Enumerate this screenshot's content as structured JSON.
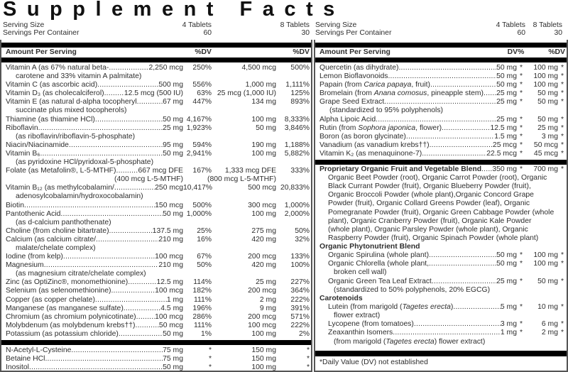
{
  "title": "Supplement Facts",
  "serving": {
    "size_label": "Serving Size",
    "size_1": "4 Tablets",
    "size_2": "8 Tablets",
    "per_label": "Servings Per Container",
    "per_1": "60",
    "per_2": "30"
  },
  "header": {
    "amount": "Amount Per Serving",
    "dv": "%DV",
    "dv2": "%DV"
  },
  "left": {
    "vitamins": [
      {
        "name": "Vitamin A (as 67% natural beta-",
        "amt": "2,250 mcg",
        "dv": "250%",
        "amt2": "4,500 mcg",
        "dv2": "500%",
        "sub": [
          "carotene and 33% vitamin A palmitate)"
        ]
      },
      {
        "name": "Vitamin C (as ascorbic acid)",
        "amt": "500 mg",
        "dv": "556%",
        "amt2": "1,000 mg",
        "dv2": "1,111%"
      },
      {
        "name": "Vitamin D₃ (as cholecalciferol)",
        "amt": "12.5 mcg (500 IU)",
        "dv": "63%",
        "amt2": "25 mcg (1,000 IU)",
        "dv2": "125%"
      },
      {
        "name": "Vitamin E (as natural d-alpha tocopheryl",
        "amt": "67 mg",
        "dv": "447%",
        "amt2": "134 mg",
        "dv2": "893%",
        "sub": [
          "succinate plus mixed tocopherols)"
        ]
      },
      {
        "name": "Thiamine (as thiamine HCl)",
        "amt": "50 mg",
        "dv": "4,167%",
        "amt2": "100 mg",
        "dv2": "8,333%"
      },
      {
        "name": "Riboflavin",
        "amt": "25 mg",
        "dv": "1,923%",
        "amt2": "50 mg",
        "dv2": "3,846%",
        "sub": [
          "(as riboflavin/riboflavin-5-phosphate)"
        ]
      },
      {
        "name": "Niacin/Niacinamide",
        "amt": "95 mg",
        "dv": "594%",
        "amt2": "190 mg",
        "dv2": "1,188%"
      },
      {
        "name": "Vitamin B₆",
        "amt": "50 mg",
        "dv": "2,941%",
        "amt2": "100 mg",
        "dv2": "5,882%",
        "sub": [
          "(as pyridoxine HCl/pyridoxal-5-phosphate)"
        ]
      },
      {
        "name": "Folate (as Metafolin®, L-5-MTHF)",
        "amt": "667 mcg DFE",
        "dv": "167%",
        "amt2": "1,333 mcg DFE",
        "dv2": "333%",
        "note": {
          "amt": "(400 mcg L-5-MTHF)",
          "amt2": "(800 mcg L-5-MTHF)"
        }
      },
      {
        "name": "Vitamin B₁₂ (as methylcobalamin/",
        "amt": "250 mcg",
        "dv": "10,417%",
        "amt2": "500 mcg",
        "dv2": "20,833%",
        "sub": [
          "adenosylcobalamin/hydroxocobalamin)"
        ]
      },
      {
        "name": "Biotin",
        "amt": "150 mcg",
        "dv": "500%",
        "amt2": "300 mcg",
        "dv2": "1,000%"
      },
      {
        "name": "Pantothenic Acid",
        "amt": "50 mg",
        "dv": "1,000%",
        "amt2": "100 mg",
        "dv2": "2,000%",
        "sub": [
          "(as d-calcium panthothenate)"
        ]
      },
      {
        "name": "Choline (from choline bitartrate)",
        "amt": "137.5 mg",
        "dv": "25%",
        "amt2": "275 mg",
        "dv2": "50%"
      },
      {
        "name": "Calcium (as calcium citrate/",
        "amt": "210 mg",
        "dv": "16%",
        "amt2": "420 mg",
        "dv2": "32%",
        "sub": [
          "malate/chelate complex)"
        ]
      },
      {
        "name": "Iodine (from kelp)",
        "amt": "100 mcg",
        "dv": "67%",
        "amt2": "200 mcg",
        "dv2": "133%"
      },
      {
        "name": "Magnesium",
        "amt": "210 mg",
        "dv": "50%",
        "amt2": "420 mg",
        "dv2": "100%",
        "sub": [
          "(as magnesium citrate/chelate complex)"
        ]
      },
      {
        "name": "Zinc (as OptiZinc®, monomethionine)",
        "amt": "12.5 mg",
        "dv": "114%",
        "amt2": "25 mg",
        "dv2": "227%"
      },
      {
        "name": "Selenium (as selenomethionine)",
        "amt": "100 mcg",
        "dv": "182%",
        "amt2": "200 mcg",
        "dv2": "364%"
      },
      {
        "name": "Copper (as copper chelate)",
        "amt": "1 mg",
        "dv": "111%",
        "amt2": "2 mg",
        "dv2": "222%"
      },
      {
        "name": "Manganese (as manganese sulfate)",
        "amt": "4.5 mg",
        "dv": "196%",
        "amt2": "9 mg",
        "dv2": "391%"
      },
      {
        "name": "Chromium (as chromium polynicotinate)",
        "amt": "100 mcg",
        "dv": "286%",
        "amt2": "200 mcg",
        "dv2": "571%"
      },
      {
        "name": "Molybdenum (as molybdenum krebs††)",
        "amt": "50 mcg",
        "dv": "111%",
        "amt2": "100 mcg",
        "dv2": "222%"
      },
      {
        "name": "Potassium (as potassium chloride)",
        "amt": "50 mg",
        "dv": "1%",
        "amt2": "100 mg",
        "dv2": "2%"
      }
    ],
    "others": [
      {
        "name": "N-Acetyl-L-Cysteine",
        "amt": "75 mg",
        "dv": "*",
        "amt2": "150 mg",
        "dv2": "*"
      },
      {
        "name": "Betaine HCl",
        "amt": "75 mg",
        "dv": "*",
        "amt2": "150 mg",
        "dv2": "*"
      },
      {
        "name": "Inositol",
        "amt": "50 mg",
        "dv": "*",
        "amt2": "100 mg",
        "dv2": "*"
      }
    ]
  },
  "right": {
    "items": [
      {
        "name": [
          {
            "t": "Quercetin (as dihydrate)"
          }
        ],
        "amt": "50 mg",
        "dv": "*",
        "amt2": "100 mg",
        "dv2": "*"
      },
      {
        "name": [
          {
            "t": "Lemon Bioflavonoids"
          }
        ],
        "amt": "50 mg",
        "dv": "*",
        "amt2": "100 mg",
        "dv2": "*"
      },
      {
        "name": [
          {
            "t": "Papain (from "
          },
          {
            "t": "Carica papaya",
            "i": true
          },
          {
            "t": ", fruit)"
          }
        ],
        "amt": "50 mg",
        "dv": "*",
        "amt2": "100 mg",
        "dv2": "*"
      },
      {
        "name": [
          {
            "t": "Bromelain (from "
          },
          {
            "t": "Anana comosus",
            "i": true
          },
          {
            "t": ", pineapple stem)"
          }
        ],
        "amt": "25 mg",
        "dv": "*",
        "amt2": "50 mg",
        "dv2": "*"
      },
      {
        "name": [
          {
            "t": "Grape Seed Extract"
          }
        ],
        "amt": "25 mg",
        "dv": "*",
        "amt2": "50 mg",
        "dv2": "*",
        "sub": [
          "(standardized to 95% polyphenols)"
        ]
      },
      {
        "name": [
          {
            "t": "Alpha Lipoic Acid"
          }
        ],
        "amt": "25 mg",
        "dv": "*",
        "amt2": "50 mg",
        "dv2": "*"
      },
      {
        "name": [
          {
            "t": "Rutin (from "
          },
          {
            "t": "Sophora japonica",
            "i": true
          },
          {
            "t": ", flower)"
          }
        ],
        "amt": "12.5 mg",
        "dv": "*",
        "amt2": "25 mg",
        "dv2": "*"
      },
      {
        "name": [
          {
            "t": "Boron (as boron glycinate)"
          }
        ],
        "amt": "1.5 mg",
        "dv": "*",
        "amt2": "3 mg",
        "dv2": "*"
      },
      {
        "name": [
          {
            "t": "Vanadium (as vanadium krebs††)"
          }
        ],
        "amt": "25 mcg",
        "dv": "*",
        "amt2": "50 mcg",
        "dv2": "*"
      },
      {
        "name": [
          {
            "t": "Vitamin K₂ (as menaquinone-7)"
          }
        ],
        "amt": "22.5 mcg",
        "dv": "*",
        "amt2": "45 mcg",
        "dv2": "*"
      }
    ],
    "blend": {
      "name": "Proprietary Organic Fruit and Vegetable Blend",
      "amt": "350 mg",
      "dv": "*",
      "amt2": "700 mg",
      "dv2": "*",
      "ingredients": [
        "Organic Beet Powder (root), Organic Carrot Powder (root), Organic",
        "Black Currant Powder (fruit), Organic Blueberry Powder (fruit),",
        "Organic Broccoli Powder (whole plant),Organic Concord Grape",
        "Powder (fruit), Organic Collard Greens Powder (leaf), Organic",
        "Pomegranate Powder (fruit), Organic Green Cabbage Powder (whole",
        "plant), Organic Cranberry Powder (fruit), Organic Kale Powder",
        "(whole plant), Organic Parsley Powder (whole plant), Organic",
        "Raspberry Powder (fruit), Organic Spinach Powder (whole plant)"
      ]
    },
    "phyto": {
      "title": "Organic Phytonutrient Blend",
      "items": [
        {
          "name": [
            {
              "t": "Organic Spirulina (whole plant)"
            }
          ],
          "amt": "50 mg",
          "dv": "*",
          "amt2": "100 mg",
          "dv2": "*"
        },
        {
          "name": [
            {
              "t": "Organic Chlorella (whole plant,"
            }
          ],
          "amt": "50 mg",
          "dv": "*",
          "amt2": "100 mg",
          "dv2": "*",
          "sub": [
            "broken cell wall)"
          ]
        },
        {
          "name": [
            {
              "t": "Organic Green Tea Leaf Extract"
            }
          ],
          "amt": "25 mg",
          "dv": "*",
          "amt2": "50 mg",
          "dv2": "*",
          "sub": [
            "(standardized to 50% polyphenols, 20% EGCG)"
          ]
        }
      ]
    },
    "carotenoids": {
      "title": "Carotenoids",
      "items": [
        {
          "name": [
            {
              "t": "Lutein (from marigold ("
            },
            {
              "t": "Tagetes erecta",
              "i": true
            },
            {
              "t": ")"
            }
          ],
          "amt": "5 mg",
          "dv": "*",
          "amt2": "10 mg",
          "dv2": "*",
          "sub": [
            "flower extract)"
          ]
        },
        {
          "name": [
            {
              "t": "Lycopene (from tomatoes)"
            }
          ],
          "amt": "3 mg",
          "dv": "*",
          "amt2": "6 mg",
          "dv2": "*"
        },
        {
          "name": [
            {
              "t": "Zeaxanthin Isomers"
            }
          ],
          "amt": "1 mg",
          "dv": "*",
          "amt2": "2 mg",
          "dv2": "*",
          "subparts": [
            {
              "t": "(from marigold ("
            },
            {
              "t": "Tagetes erecta",
              "i": true
            },
            {
              "t": ") flower extract)"
            }
          ]
        }
      ]
    },
    "footnote": "*Daily Value (DV) not established"
  }
}
